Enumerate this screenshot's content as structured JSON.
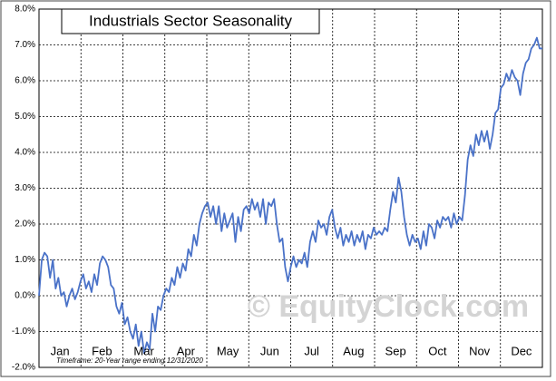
{
  "chart_data": {
    "type": "line",
    "title": "Industrials Sector Seasonality",
    "footnote": "Timeframe: 20-Year range ending 12/31/2020",
    "watermark": "© EquityClock.com",
    "month_labels": [
      "Jan",
      "Feb",
      "Mar",
      "Apr",
      "May",
      "Jun",
      "Jul",
      "Aug",
      "Sep",
      "Oct",
      "Nov",
      "Dec"
    ],
    "ylim": [
      -2,
      8
    ],
    "yticks": [
      {
        "value": -2,
        "label": "-2.0%"
      },
      {
        "value": -1,
        "label": "-1.0%"
      },
      {
        "value": 0,
        "label": "0.0%"
      },
      {
        "value": 1,
        "label": "1.0%"
      },
      {
        "value": 2,
        "label": "2.0%"
      },
      {
        "value": 3,
        "label": "3.0%"
      },
      {
        "value": 4,
        "label": "4.0%"
      },
      {
        "value": 5,
        "label": "5.0%"
      },
      {
        "value": 6,
        "label": "6.0%"
      },
      {
        "value": 7,
        "label": "7.0%"
      },
      {
        "value": 8,
        "label": "8.0%"
      }
    ],
    "grid": true,
    "series": [
      {
        "color": "#4a72c8",
        "values": [
          0,
          1.0,
          1.2,
          1.1,
          0.5,
          1.0,
          0.2,
          0.5,
          0.0,
          0.1,
          -0.3,
          0.0,
          0.2,
          -0.1,
          0.1,
          0.4,
          0.6,
          0.2,
          0.4,
          0.1,
          0.6,
          0.3,
          0.9,
          1.1,
          1.0,
          0.8,
          0.3,
          0.2,
          -0.3,
          -0.5,
          -0.2,
          -0.8,
          -0.6,
          -1.0,
          -1.2,
          -0.8,
          -1.4,
          -1.0,
          -1.6,
          -1.3,
          -1.5,
          -0.5,
          -1.0,
          -0.3,
          -0.4,
          0.0,
          0.2,
          0.1,
          0.5,
          0.3,
          0.8,
          0.5,
          0.9,
          0.7,
          1.3,
          1.1,
          1.7,
          1.4,
          2.0,
          2.3,
          2.5,
          2.6,
          2.2,
          2.5,
          2.0,
          2.5,
          1.8,
          2.3,
          1.9,
          2.1,
          2.3,
          1.5,
          2.2,
          1.8,
          2.4,
          2.5,
          2.3,
          2.7,
          2.4,
          2.6,
          2.2,
          2.7,
          2.0,
          2.6,
          2.5,
          2.7,
          2.0,
          1.5,
          1.6,
          0.8,
          0.4,
          0.8,
          1.1,
          0.8,
          1.0,
          0.9,
          1.2,
          0.8,
          1.5,
          1.8,
          1.5,
          2.1,
          1.9,
          2.0,
          1.7,
          2.2,
          2.4,
          1.9,
          1.6,
          1.9,
          1.4,
          1.7,
          1.5,
          1.8,
          1.4,
          1.7,
          1.5,
          1.8,
          1.3,
          1.7,
          1.6,
          1.9,
          1.7,
          1.8,
          1.7,
          1.9,
          1.8,
          2.4,
          2.9,
          2.6,
          3.3,
          2.9,
          2.2,
          1.7,
          1.4,
          1.7,
          1.5,
          1.6,
          1.3,
          1.8,
          1.4,
          2.0,
          1.9,
          1.6,
          2.1,
          1.9,
          2.2,
          2.1,
          2.2,
          1.9,
          2.3,
          2.0,
          2.2,
          2.1,
          2.8,
          3.8,
          4.2,
          3.9,
          4.5,
          4.2,
          4.6,
          4.3,
          4.6,
          4.1,
          4.5,
          5.1,
          5.2,
          5.8,
          5.9,
          6.2,
          6.0,
          6.3,
          6.1,
          6.0,
          5.6,
          6.2,
          6.5,
          6.6,
          6.9,
          7.0,
          7.2,
          6.9,
          6.9
        ]
      }
    ]
  }
}
